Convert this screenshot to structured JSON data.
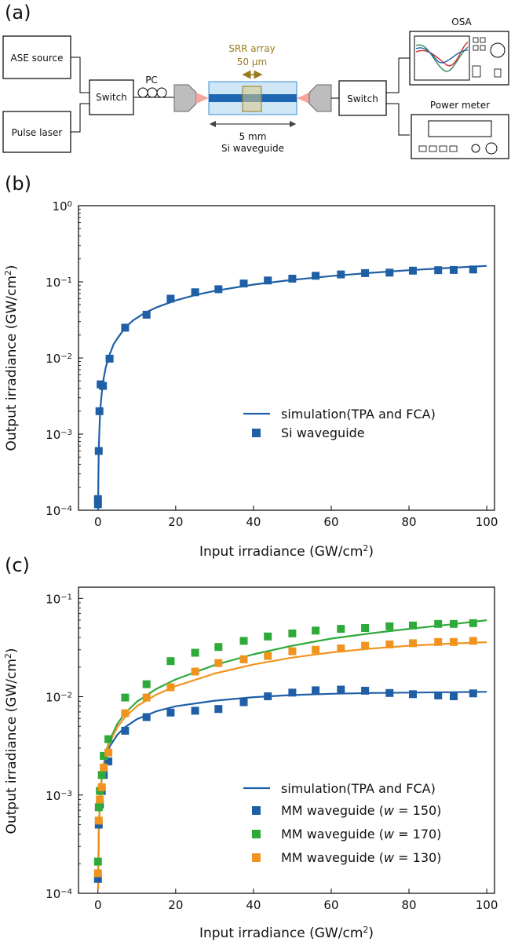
{
  "diagram": {
    "panel_label": "(a)",
    "ase_source": "ASE source",
    "pulse_laser": "Pulse laser",
    "switch_left": "Switch",
    "pc": "PC",
    "srr_array": "SRR array",
    "srr_width": "50 μm",
    "length": "5 mm",
    "waveguide": "Si waveguide",
    "switch_right": "Switch",
    "osa": "OSA",
    "power_meter": "Power meter",
    "colors": {
      "srr": "#9a7a1c",
      "waveguide_fill": "#cfe6f7",
      "waveguide_core": "#1f66b2",
      "taper": "#f4a6a0"
    }
  },
  "chart_data": [
    {
      "type": "scatter",
      "panel_label": "(b)",
      "xlabel": "Input irradiance (GW/cm",
      "xlabel_sup": "2",
      "xlabel_end": ")",
      "ylabel": "Output irradiance (GW/cm",
      "ylabel_sup": "2",
      "ylabel_end": ")",
      "xlim": [
        -5,
        102
      ],
      "ylim": [
        0.0001,
        1
      ],
      "yscale": "log",
      "x_ticks": [
        0,
        20,
        40,
        60,
        80,
        100
      ],
      "y_ticks": [
        {
          "value": 1,
          "base": "10",
          "exp": "0"
        },
        {
          "value": 0.1,
          "base": "10",
          "exp": "−1"
        },
        {
          "value": 0.01,
          "base": "10",
          "exp": "−2"
        },
        {
          "value": 0.001,
          "base": "10",
          "exp": "−3"
        },
        {
          "value": 0.0001,
          "base": "10",
          "exp": "−4"
        }
      ],
      "legend_position": "right",
      "series": [
        {
          "name": "simulation(TPA and FCA)",
          "kind": "line",
          "color": "#1f5fa6",
          "x": [
            0.05,
            0.1,
            0.2,
            0.3,
            0.5,
            0.7,
            1,
            1.5,
            2,
            3,
            4,
            5,
            7,
            9,
            12,
            15,
            20,
            25,
            30,
            40,
            50,
            60,
            70,
            80,
            90,
            100
          ],
          "y": [
            0.0001,
            0.00025,
            0.0006,
            0.0009,
            0.0016,
            0.0024,
            0.0035,
            0.0055,
            0.0075,
            0.011,
            0.015,
            0.018,
            0.025,
            0.031,
            0.039,
            0.046,
            0.057,
            0.067,
            0.076,
            0.092,
            0.106,
            0.119,
            0.131,
            0.142,
            0.152,
            0.162
          ]
        },
        {
          "name": "Si waveguide",
          "kind": "marker",
          "color": "#1f5fa6",
          "x": [
            0,
            0,
            0.2,
            0.4,
            0.7,
            1.3,
            3,
            7,
            12.5,
            18.7,
            25,
            31,
            37.5,
            43.7,
            50,
            56,
            62.5,
            68.7,
            75,
            81,
            87.5,
            91.5,
            96.5
          ],
          "y": [
            0.00012,
            0.00014,
            0.0006,
            0.002,
            0.0045,
            0.0043,
            0.0098,
            0.025,
            0.037,
            0.06,
            0.073,
            0.08,
            0.095,
            0.104,
            0.11,
            0.12,
            0.125,
            0.13,
            0.132,
            0.14,
            0.142,
            0.143,
            0.145
          ]
        }
      ]
    },
    {
      "type": "scatter",
      "panel_label": "(c)",
      "xlabel": "Input irradiance (GW/cm",
      "xlabel_sup": "2",
      "xlabel_end": ")",
      "ylabel": "Output irradiance (GW/cm",
      "ylabel_sup": "2",
      "ylabel_end": ")",
      "xlim": [
        -5,
        102
      ],
      "ylim": [
        0.0001,
        0.13
      ],
      "yscale": "log",
      "x_ticks": [
        0,
        20,
        40,
        60,
        80,
        100
      ],
      "y_ticks": [
        {
          "value": 0.1,
          "base": "10",
          "exp": "−1"
        },
        {
          "value": 0.01,
          "base": "10",
          "exp": "−2"
        },
        {
          "value": 0.001,
          "base": "10",
          "exp": "−3"
        },
        {
          "value": 0.0001,
          "base": "10",
          "exp": "−4"
        }
      ],
      "legend_position": "lower right",
      "series": [
        {
          "name": "simulation(TPA and FCA)",
          "kind": "line",
          "color": "#1f5fa6",
          "x": [
            0.05,
            0.2,
            0.5,
            1,
            2,
            3,
            5,
            7,
            10,
            15,
            20,
            30,
            40,
            50,
            60,
            70,
            80,
            90,
            100
          ],
          "y": [
            0.00011,
            0.0004,
            0.0009,
            0.0015,
            0.0024,
            0.0031,
            0.0041,
            0.0049,
            0.0059,
            0.0071,
            0.008,
            0.0091,
            0.0099,
            0.0104,
            0.0107,
            0.0109,
            0.011,
            0.0111,
            0.0112
          ]
        },
        {
          "name": "",
          "kind": "line",
          "color": "#2eaa3a",
          "x": [
            0.05,
            0.2,
            0.5,
            1,
            2,
            3,
            5,
            7,
            10,
            15,
            20,
            30,
            40,
            50,
            60,
            70,
            80,
            90,
            100
          ],
          "y": [
            0.00011,
            0.0004,
            0.0009,
            0.0016,
            0.0027,
            0.0036,
            0.0053,
            0.0068,
            0.0089,
            0.012,
            0.015,
            0.021,
            0.027,
            0.033,
            0.039,
            0.044,
            0.049,
            0.054,
            0.06
          ]
        },
        {
          "name": "",
          "kind": "line",
          "color": "#f0941f",
          "x": [
            0.05,
            0.2,
            0.5,
            1,
            2,
            3,
            5,
            7,
            10,
            15,
            20,
            30,
            40,
            50,
            60,
            70,
            80,
            90,
            100
          ],
          "y": [
            0.00011,
            0.0004,
            0.0009,
            0.0016,
            0.0026,
            0.0034,
            0.0049,
            0.0062,
            0.008,
            0.0105,
            0.0128,
            0.0172,
            0.0213,
            0.025,
            0.0282,
            0.0308,
            0.033,
            0.0346,
            0.0358
          ]
        },
        {
          "name": "MM waveguide (",
          "name_italic": "w",
          "name_end": " = 150)",
          "kind": "marker",
          "color": "#1f5fa6",
          "x": [
            0,
            0.2,
            0.5,
            1,
            1.5,
            2.7,
            7,
            12.5,
            18.7,
            25,
            31,
            37.5,
            43.7,
            50,
            56,
            62.5,
            68.7,
            75,
            81,
            87.5,
            91.5,
            96.5
          ],
          "y": [
            0.00014,
            0.0005,
            0.0008,
            0.0011,
            0.0016,
            0.0022,
            0.0045,
            0.0062,
            0.0069,
            0.0072,
            0.0075,
            0.0088,
            0.0101,
            0.011,
            0.0116,
            0.0118,
            0.0115,
            0.0109,
            0.0106,
            0.0103,
            0.0101,
            0.0108
          ]
        },
        {
          "name": "MM waveguide (",
          "name_italic": "w",
          "name_end": " = 170)",
          "kind": "marker",
          "color": "#2eaa3a",
          "x": [
            0,
            0.2,
            0.5,
            1,
            1.5,
            2.7,
            7,
            12.5,
            18.7,
            25,
            31,
            37.5,
            43.7,
            50,
            56,
            62.5,
            68.7,
            75,
            81,
            87.5,
            91.5,
            96.5
          ],
          "y": [
            0.00021,
            0.00075,
            0.0011,
            0.0016,
            0.0025,
            0.0037,
            0.0098,
            0.0134,
            0.023,
            0.028,
            0.032,
            0.037,
            0.041,
            0.044,
            0.047,
            0.049,
            0.05,
            0.052,
            0.053,
            0.055,
            0.055,
            0.056
          ]
        },
        {
          "name": "MM waveguide (",
          "name_italic": "w",
          "name_end": " = 130)",
          "kind": "marker",
          "color": "#f0941f",
          "x": [
            0,
            0.2,
            0.5,
            1,
            1.5,
            2.7,
            7,
            12.5,
            18.7,
            25,
            31,
            37.5,
            43.7,
            50,
            56,
            62.5,
            68.7,
            75,
            81,
            87.5,
            91.5,
            96.5
          ],
          "y": [
            0.00016,
            0.00055,
            0.0009,
            0.0012,
            0.0019,
            0.0027,
            0.0068,
            0.0098,
            0.0125,
            0.018,
            0.022,
            0.024,
            0.026,
            0.029,
            0.03,
            0.031,
            0.033,
            0.034,
            0.035,
            0.036,
            0.036,
            0.037
          ]
        }
      ]
    }
  ]
}
